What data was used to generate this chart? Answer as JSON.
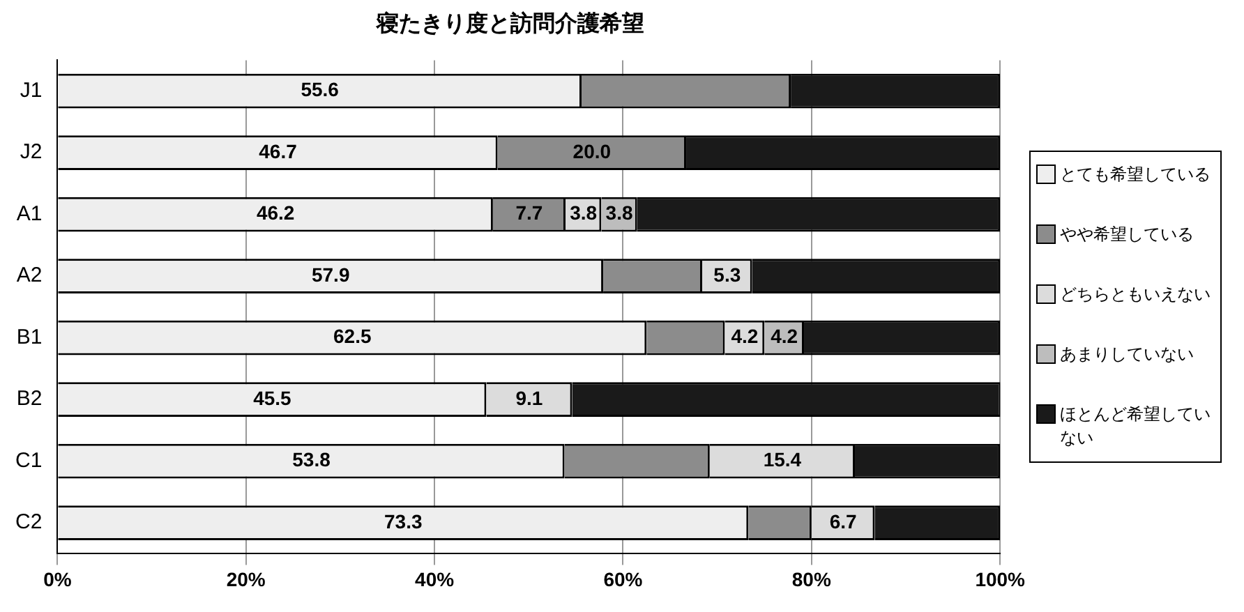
{
  "chart_data": {
    "type": "bar",
    "orientation": "horizontal",
    "stacked": true,
    "title": "寝たきり度と訪問介護希望",
    "categories": [
      "J1",
      "J2",
      "A1",
      "A2",
      "B1",
      "B2",
      "C1",
      "C2"
    ],
    "series": [
      {
        "name": "とても希望している",
        "color": "#eeeeee",
        "values": [
          55.6,
          46.7,
          46.2,
          57.9,
          62.5,
          45.5,
          53.8,
          73.3
        ],
        "value_labels": [
          "55.6",
          "46.7",
          "46.2",
          "57.9",
          "62.5",
          "45.5",
          "53.8",
          "73.3"
        ]
      },
      {
        "name": "やや希望している",
        "color": "#8c8c8c",
        "values": [
          22.2,
          20.0,
          7.7,
          10.5,
          8.3,
          0,
          15.4,
          6.7
        ],
        "value_labels": [
          null,
          "20.0",
          "7.7",
          null,
          null,
          null,
          null,
          null
        ]
      },
      {
        "name": "どちらともいえない",
        "color": "#dcdcdc",
        "values": [
          0,
          0,
          3.8,
          5.3,
          4.2,
          9.1,
          15.4,
          6.7
        ],
        "value_labels": [
          null,
          null,
          "3.8",
          "5.3",
          "4.2",
          "9.1",
          "15.4",
          "6.7"
        ]
      },
      {
        "name": "あまりしていない",
        "color": "#bdbdbd",
        "values": [
          0,
          0,
          3.8,
          0,
          4.2,
          0,
          0,
          0
        ],
        "value_labels": [
          null,
          null,
          "3.8",
          null,
          "4.2",
          null,
          null,
          null
        ]
      },
      {
        "name": "ほとんど希望していない",
        "color": "#1a1a1a",
        "values": [
          22.2,
          33.3,
          38.5,
          26.3,
          20.8,
          45.5,
          15.4,
          13.3
        ]
      }
    ],
    "xlim": [
      0,
      100
    ],
    "xticks": [
      {
        "value": 0,
        "label": "0%"
      },
      {
        "value": 20,
        "label": "20%"
      },
      {
        "value": 40,
        "label": "40%"
      },
      {
        "value": 60,
        "label": "60%"
      },
      {
        "value": 80,
        "label": "80%"
      },
      {
        "value": 100,
        "label": "100%"
      }
    ],
    "grid": "x",
    "legend": "right"
  }
}
